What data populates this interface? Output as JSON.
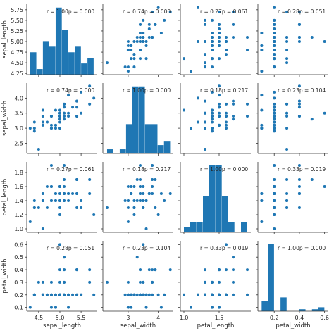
{
  "chart_data": {
    "type": "scatter",
    "variables": [
      "sepal_length",
      "sepal_width",
      "petal_length",
      "petal_width"
    ],
    "color": "#1f77b4",
    "diagonal": "histogram",
    "annotations": [
      [
        "r = 1.00p = 0.000",
        "r = 0.74p = 0.000",
        "r = 0.27p = 0.061",
        "r = 0.28p = 0.051"
      ],
      [
        "r = 0.74p = 0.000",
        "r = 1.00p = 0.000",
        "r = 0.18p = 0.217",
        "r = 0.23p = 0.104"
      ],
      [
        "r = 0.27p = 0.061",
        "r = 0.18p = 0.217",
        "r = 1.00p = 0.000",
        "r = 0.33p = 0.019"
      ],
      [
        "r = 0.28p = 0.051",
        "r = 0.23p = 0.104",
        "r = 0.33p = 0.019",
        "r = 1.00p = 0.000"
      ]
    ],
    "axes": {
      "sepal_length": {
        "lim": [
          4.22,
          5.88
        ],
        "ticks": [
          "4.25",
          "4.50",
          "4.75",
          "5.00",
          "5.25",
          "5.50",
          "5.75"
        ],
        "ticks_x": [
          "4.5",
          "5.0",
          "5.5"
        ]
      },
      "sepal_width": {
        "lim": [
          2.16,
          4.5
        ],
        "ticks": [
          "2.5",
          "3.0",
          "3.5",
          "4.0"
        ],
        "ticks_x": [
          "3",
          "4"
        ]
      },
      "petal_length": {
        "lim": [
          0.95,
          1.95
        ],
        "ticks": [
          "1.0",
          "1.2",
          "1.4",
          "1.6",
          "1.8"
        ],
        "ticks_x": [
          "1.0",
          "1.5"
        ]
      },
      "petal_width": {
        "lim": [
          0.07,
          0.63
        ],
        "ticks": [
          "0.1",
          "0.2",
          "0.3",
          "0.4",
          "0.5",
          "0.6"
        ],
        "ticks_x": [
          "0.2",
          "0.4",
          "0.6"
        ]
      }
    },
    "histograms": {
      "sepal_length": {
        "edges": [
          4.3,
          4.45,
          4.6,
          4.75,
          4.9,
          5.05,
          5.2,
          5.35,
          5.5,
          5.65,
          5.8
        ],
        "counts": [
          4,
          1,
          6,
          5,
          12,
          8,
          4,
          5,
          2,
          3
        ]
      },
      "sepal_width": {
        "edges": [
          2.3,
          2.51,
          2.72,
          2.93,
          3.14,
          3.35,
          3.56,
          3.77,
          3.98,
          4.19,
          4.4
        ],
        "counts": [
          1,
          0,
          1,
          7,
          16,
          16,
          7,
          7,
          2,
          3
        ]
      },
      "petal_length": {
        "edges": [
          1.0,
          1.09,
          1.18,
          1.27,
          1.36,
          1.45,
          1.54,
          1.63,
          1.72,
          1.81,
          1.9
        ],
        "counts": [
          1,
          2,
          2,
          7,
          13,
          13,
          7,
          2,
          0,
          2
        ]
      },
      "petal_width": {
        "edges": [
          0.1,
          0.15,
          0.2,
          0.25,
          0.3,
          0.35,
          0.4,
          0.45,
          0.5,
          0.55,
          0.6
        ],
        "counts": [
          5,
          34,
          0,
          7,
          0,
          0,
          1,
          0,
          1,
          2
        ]
      }
    },
    "data": [
      [
        5.1,
        3.5,
        1.4,
        0.2
      ],
      [
        4.9,
        3.0,
        1.4,
        0.2
      ],
      [
        4.7,
        3.2,
        1.3,
        0.2
      ],
      [
        4.6,
        3.1,
        1.5,
        0.2
      ],
      [
        5.0,
        3.6,
        1.4,
        0.2
      ],
      [
        5.4,
        3.9,
        1.7,
        0.4
      ],
      [
        4.6,
        3.4,
        1.4,
        0.3
      ],
      [
        5.0,
        3.4,
        1.5,
        0.2
      ],
      [
        4.4,
        2.9,
        1.4,
        0.2
      ],
      [
        4.9,
        3.1,
        1.5,
        0.1
      ],
      [
        5.4,
        3.7,
        1.5,
        0.2
      ],
      [
        4.8,
        3.4,
        1.6,
        0.2
      ],
      [
        4.8,
        3.0,
        1.4,
        0.1
      ],
      [
        4.3,
        3.0,
        1.1,
        0.1
      ],
      [
        5.8,
        4.0,
        1.2,
        0.2
      ],
      [
        5.7,
        4.4,
        1.5,
        0.4
      ],
      [
        5.4,
        3.9,
        1.3,
        0.4
      ],
      [
        5.1,
        3.5,
        1.4,
        0.3
      ],
      [
        5.7,
        3.8,
        1.7,
        0.3
      ],
      [
        5.1,
        3.8,
        1.5,
        0.3
      ],
      [
        5.4,
        3.4,
        1.7,
        0.2
      ],
      [
        5.1,
        3.7,
        1.5,
        0.4
      ],
      [
        4.6,
        3.6,
        1.0,
        0.2
      ],
      [
        5.1,
        3.3,
        1.7,
        0.5
      ],
      [
        4.8,
        3.4,
        1.9,
        0.2
      ],
      [
        5.0,
        3.0,
        1.6,
        0.2
      ],
      [
        5.0,
        3.4,
        1.6,
        0.4
      ],
      [
        5.2,
        3.5,
        1.5,
        0.2
      ],
      [
        5.2,
        3.4,
        1.4,
        0.2
      ],
      [
        4.7,
        3.2,
        1.6,
        0.2
      ],
      [
        4.8,
        3.1,
        1.6,
        0.2
      ],
      [
        5.4,
        3.4,
        1.5,
        0.4
      ],
      [
        5.2,
        4.1,
        1.5,
        0.1
      ],
      [
        5.5,
        4.2,
        1.4,
        0.2
      ],
      [
        4.9,
        3.1,
        1.5,
        0.2
      ],
      [
        5.0,
        3.2,
        1.2,
        0.2
      ],
      [
        5.5,
        3.5,
        1.3,
        0.2
      ],
      [
        4.9,
        3.6,
        1.4,
        0.1
      ],
      [
        4.4,
        3.0,
        1.3,
        0.2
      ],
      [
        5.1,
        3.4,
        1.5,
        0.2
      ],
      [
        5.0,
        3.5,
        1.3,
        0.3
      ],
      [
        4.5,
        2.3,
        1.3,
        0.3
      ],
      [
        4.4,
        3.2,
        1.3,
        0.2
      ],
      [
        5.0,
        3.5,
        1.6,
        0.6
      ],
      [
        5.1,
        3.8,
        1.9,
        0.4
      ],
      [
        4.8,
        3.0,
        1.4,
        0.3
      ],
      [
        5.1,
        3.8,
        1.6,
        0.2
      ],
      [
        4.6,
        3.2,
        1.4,
        0.2
      ],
      [
        5.3,
        3.7,
        1.5,
        0.2
      ],
      [
        5.0,
        3.3,
        1.4,
        0.2
      ]
    ]
  }
}
